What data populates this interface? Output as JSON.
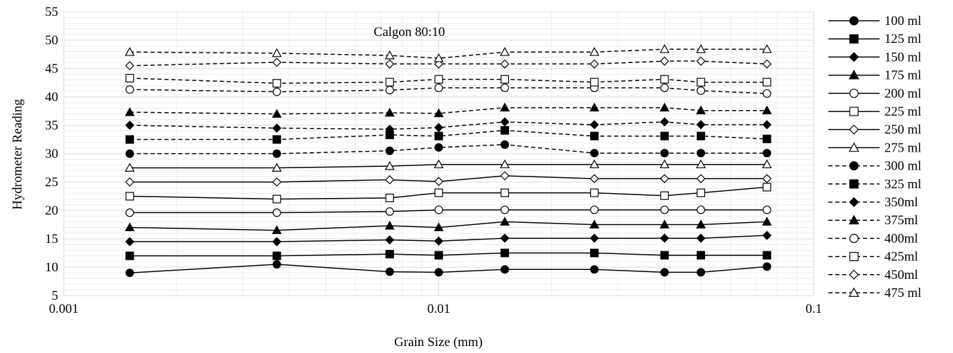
{
  "chart_data": {
    "type": "line",
    "annotation": "Calgon 80:10",
    "xlabel": "Grain Size (mm)",
    "ylabel": "Hydrometer Reading",
    "x_scale": "log",
    "xlim": [
      0.001,
      0.1
    ],
    "ylim": [
      5,
      55
    ],
    "x_ticks": [
      "0.001",
      "0.01",
      "0.1"
    ],
    "y_ticks": [
      "5",
      "10",
      "15",
      "20",
      "25",
      "30",
      "35",
      "40",
      "45",
      "50",
      "55"
    ],
    "grid": true,
    "legend_position": "right",
    "x": [
      0.0015,
      0.0037,
      0.0074,
      0.01,
      0.015,
      0.026,
      0.04,
      0.05,
      0.075
    ],
    "series": [
      {
        "name": "100 ml",
        "marker": "circle",
        "fill": "filled",
        "dash": "solid",
        "values": [
          9.0,
          10.5,
          9.2,
          9.1,
          9.6,
          9.6,
          9.1,
          9.1,
          10.1
        ]
      },
      {
        "name": "125 ml",
        "marker": "square",
        "fill": "filled",
        "dash": "solid",
        "values": [
          12.0,
          12.0,
          12.3,
          12.1,
          12.5,
          12.5,
          12.1,
          12.1,
          12.1
        ]
      },
      {
        "name": "150 ml",
        "marker": "diamond",
        "fill": "filled",
        "dash": "solid",
        "values": [
          14.5,
          14.5,
          14.8,
          14.6,
          15.1,
          15.1,
          15.1,
          15.1,
          15.6
        ]
      },
      {
        "name": "175 ml",
        "marker": "triangle",
        "fill": "filled",
        "dash": "solid",
        "values": [
          17.0,
          16.5,
          17.3,
          17.0,
          18.0,
          17.5,
          17.5,
          17.5,
          18.0
        ]
      },
      {
        "name": "200 ml",
        "marker": "circle",
        "fill": "open",
        "dash": "solid",
        "values": [
          19.6,
          19.6,
          19.8,
          20.1,
          20.1,
          20.1,
          20.1,
          20.1,
          20.1
        ]
      },
      {
        "name": "225 ml",
        "marker": "square",
        "fill": "open",
        "dash": "solid",
        "values": [
          22.5,
          22.0,
          22.2,
          23.1,
          23.1,
          23.1,
          22.6,
          23.1,
          24.1
        ]
      },
      {
        "name": "250 ml",
        "marker": "diamond",
        "fill": "open",
        "dash": "solid",
        "values": [
          25.0,
          25.0,
          25.4,
          25.1,
          26.1,
          25.6,
          25.6,
          25.6,
          25.6
        ]
      },
      {
        "name": "275 ml",
        "marker": "triangle",
        "fill": "open",
        "dash": "solid",
        "values": [
          27.5,
          27.5,
          27.8,
          28.1,
          28.1,
          28.1,
          28.1,
          28.1,
          28.1
        ]
      },
      {
        "name": "300 ml",
        "marker": "circle",
        "fill": "filled",
        "dash": "dashed",
        "values": [
          30.0,
          30.0,
          30.5,
          31.1,
          31.6,
          30.1,
          30.1,
          30.1,
          30.1
        ]
      },
      {
        "name": "325 ml",
        "marker": "square",
        "fill": "filled",
        "dash": "dashed",
        "values": [
          32.5,
          32.5,
          33.3,
          33.1,
          34.1,
          33.1,
          33.1,
          33.1,
          32.6
        ]
      },
      {
        "name": "350ml",
        "marker": "diamond",
        "fill": "filled",
        "dash": "dashed",
        "values": [
          35.0,
          34.5,
          34.3,
          34.6,
          35.6,
          35.1,
          35.6,
          35.1,
          35.1
        ]
      },
      {
        "name": "375ml",
        "marker": "triangle",
        "fill": "filled",
        "dash": "dashed",
        "values": [
          37.3,
          37.0,
          37.2,
          37.1,
          38.1,
          38.1,
          38.1,
          37.6,
          37.6
        ]
      },
      {
        "name": "400ml",
        "marker": "circle",
        "fill": "open",
        "dash": "dashed",
        "values": [
          41.3,
          40.9,
          41.2,
          41.6,
          41.6,
          41.6,
          41.6,
          41.1,
          40.6
        ]
      },
      {
        "name": "425ml",
        "marker": "square",
        "fill": "open",
        "dash": "dashed",
        "values": [
          43.3,
          42.4,
          42.6,
          43.1,
          43.1,
          42.6,
          43.1,
          42.6,
          42.6
        ]
      },
      {
        "name": "450ml",
        "marker": "diamond",
        "fill": "open",
        "dash": "dashed",
        "values": [
          45.5,
          46.1,
          45.8,
          45.8,
          45.8,
          45.8,
          46.3,
          46.3,
          45.8
        ]
      },
      {
        "name": "475 ml",
        "marker": "triangle",
        "fill": "open",
        "dash": "dashed",
        "values": [
          47.9,
          47.7,
          47.3,
          46.8,
          47.9,
          47.9,
          48.4,
          48.4,
          48.4
        ]
      }
    ]
  }
}
